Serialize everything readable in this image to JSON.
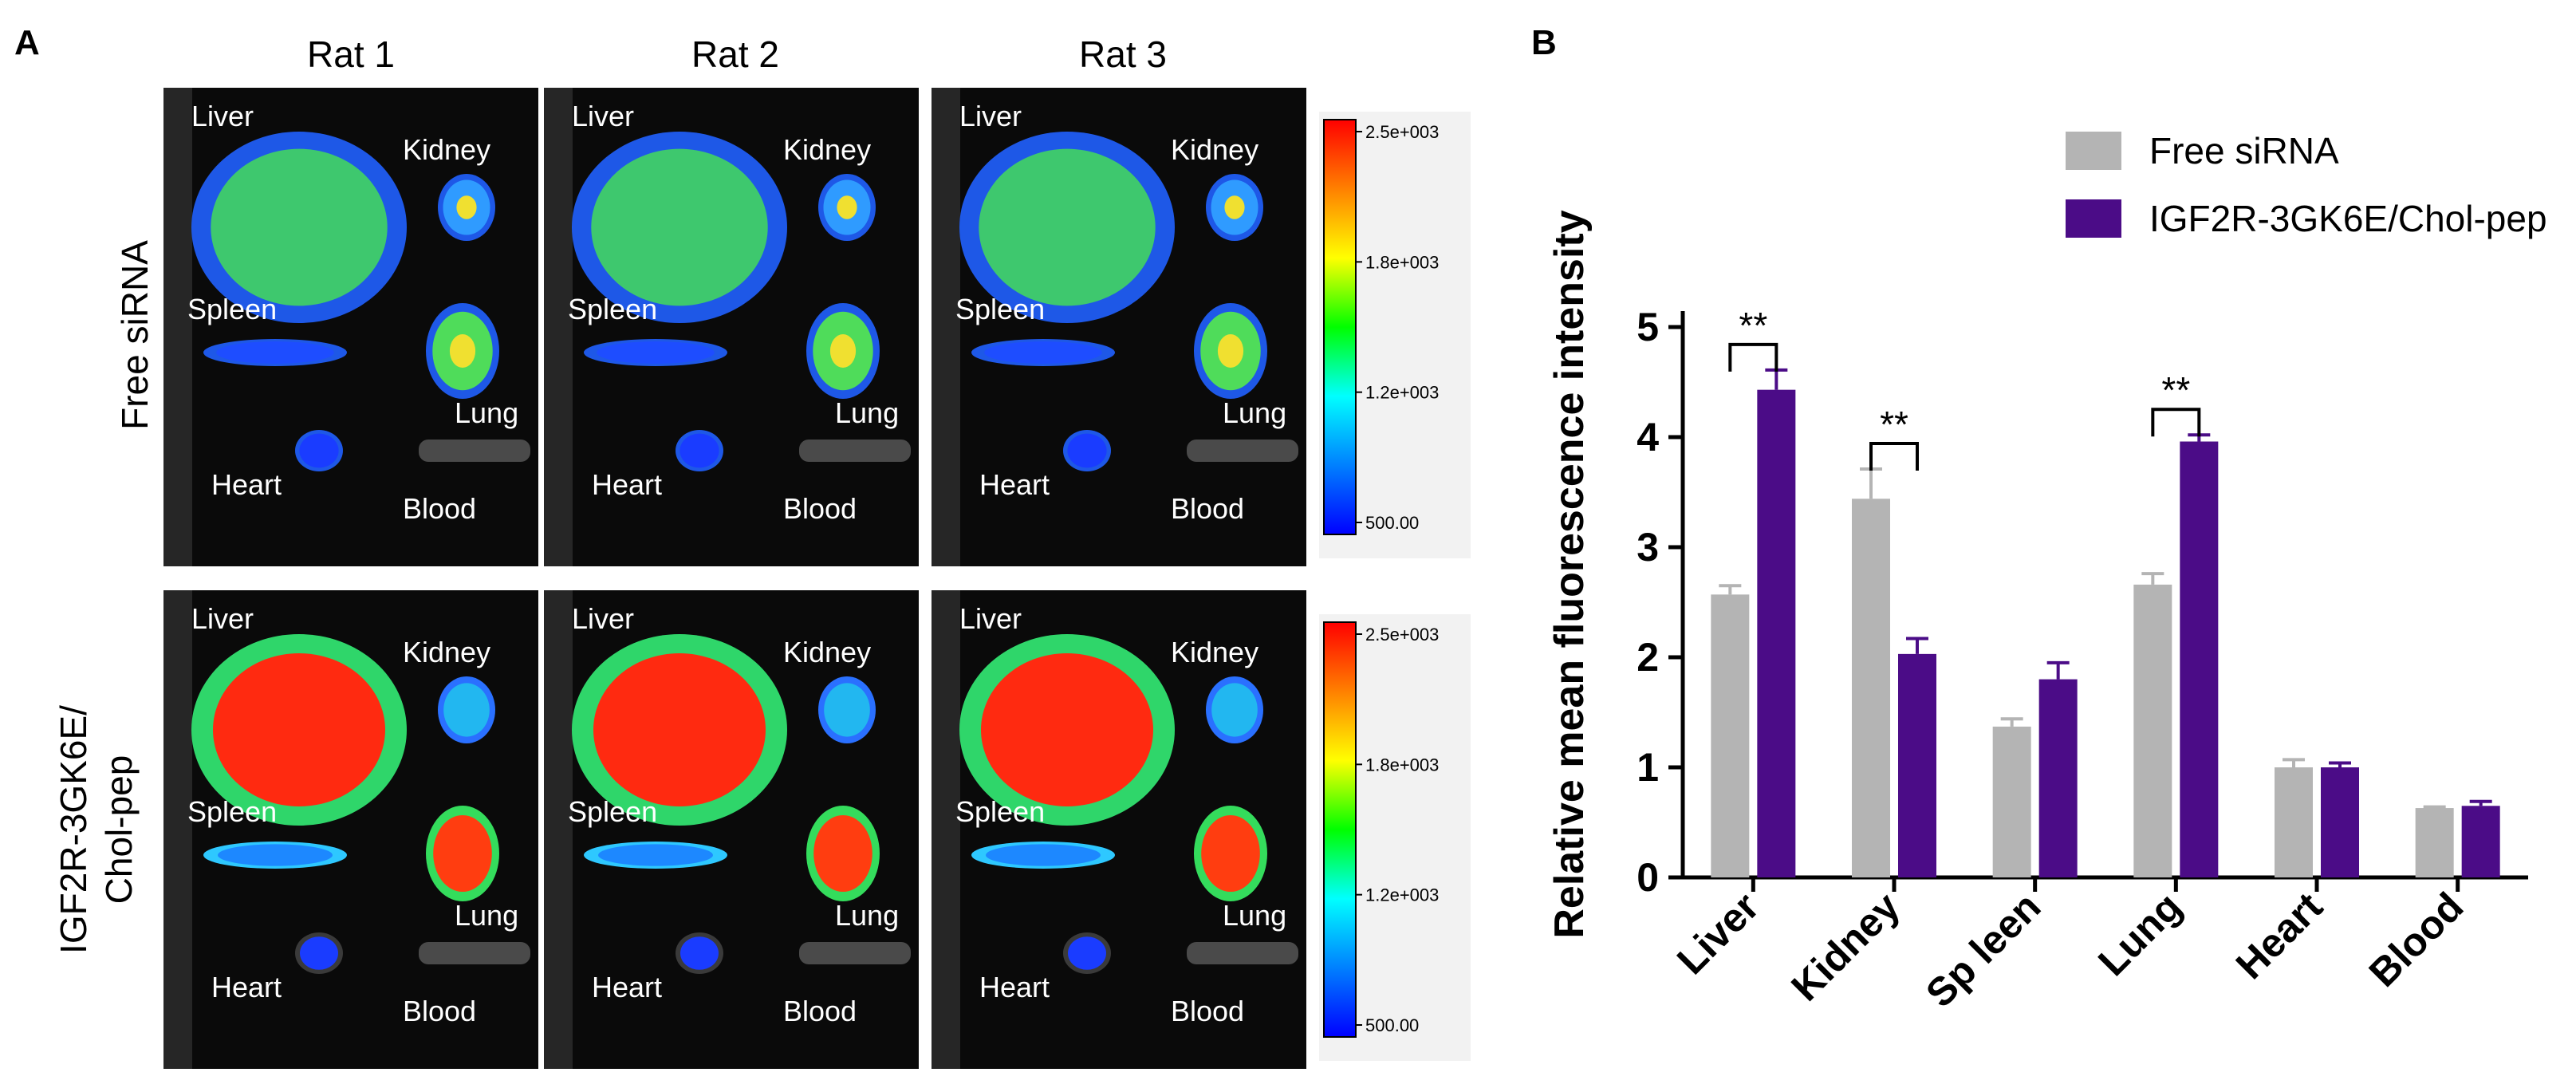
{
  "panelA": {
    "label": "A",
    "columns": [
      "Rat 1",
      "Rat 2",
      "Rat 3"
    ],
    "rows": [
      {
        "label_lines": [
          "Free siRNA"
        ]
      },
      {
        "label_lines": [
          "IGF2R-3GK6E/",
          "Chol-pep"
        ]
      }
    ],
    "images": [
      [
        {
          "liver": "Liver",
          "kidney": "Kidney",
          "spleen": "Spleen",
          "lung": "Lung",
          "heart": "Heart",
          "blood": "Blood"
        },
        {
          "liver": "Liver",
          "kidney": "Kidney",
          "spleen": "Spleen",
          "lung": "Lung",
          "heart": "Heart",
          "blood": "Blood"
        },
        {
          "liver": "Liver",
          "kidney": "Kidney",
          "spleen": "Spleen",
          "lung": "Lung",
          "heart": "Heart",
          "blood": "Blood"
        }
      ],
      [
        {
          "liver": "Liver",
          "kidney": "Kidney",
          "spleen": "Spleen",
          "lung": "Lung",
          "heart": "Heart",
          "blood": "Blood"
        },
        {
          "liver": "Liver",
          "kidney": "Kidney",
          "spleen": "Spleen",
          "lung": "Lung",
          "heart": "Heart",
          "blood": "Blood"
        },
        {
          "liver": "Liver",
          "kidney": "Kidney",
          "spleen": "Spleen",
          "lung": "Lung",
          "heart": "Heart",
          "blood": "Blood"
        }
      ]
    ],
    "colorbar_ticks": [
      "2.5e+003",
      "1.8e+003",
      "1.2e+003",
      "500.00"
    ],
    "colorbar_colors": [
      "#ff0000",
      "#ff8000",
      "#ffff00",
      "#00ff00",
      "#00ffff",
      "#0080ff",
      "#0000ff"
    ]
  },
  "chart_data": {
    "panel_label": "B",
    "type": "bar",
    "categories": [
      "Liver",
      "Kidney",
      "Sp leen",
      "Lung",
      "Heart",
      "Blood"
    ],
    "series": [
      {
        "name": "Free siRNA",
        "color": "#b4b4b4",
        "values": [
          2.57,
          3.44,
          1.37,
          2.66,
          1.0,
          0.63
        ],
        "errors": [
          0.08,
          0.27,
          0.07,
          0.1,
          0.07,
          0.01
        ]
      },
      {
        "name": "IGF2R-3GK6E/Chol-pep",
        "color": "#4b0c87",
        "values": [
          4.43,
          2.03,
          1.8,
          3.96,
          1.0,
          0.65
        ],
        "errors": [
          0.18,
          0.14,
          0.15,
          0.06,
          0.04,
          0.04
        ]
      }
    ],
    "ylabel": "Relative mean fluorescence intensity",
    "xlabel": "",
    "ylim": [
      0,
      5
    ],
    "yticks": [
      0,
      1,
      2,
      3,
      4,
      5
    ],
    "significance": [
      {
        "category_index": 0,
        "label": "**"
      },
      {
        "category_index": 1,
        "label": "**"
      },
      {
        "category_index": 3,
        "label": "**"
      }
    ]
  }
}
